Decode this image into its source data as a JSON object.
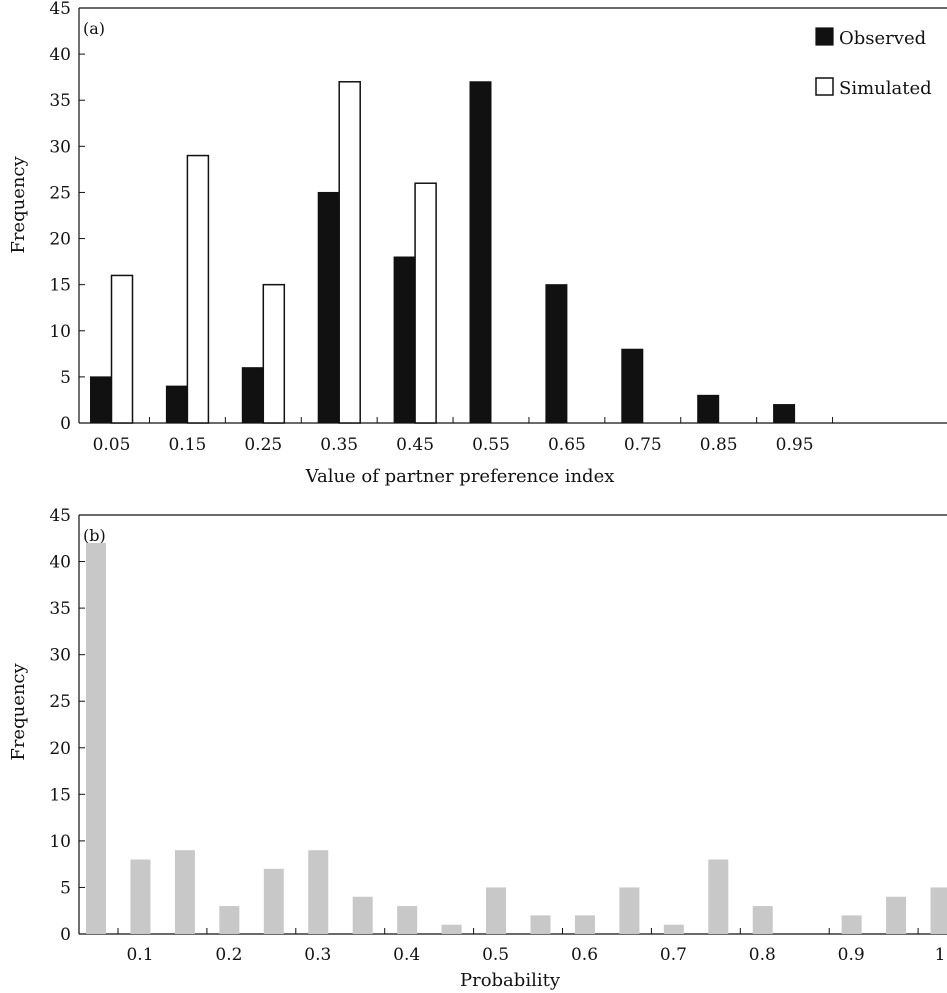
{
  "chart_data": [
    {
      "type": "bar",
      "panel_label": "(a)",
      "xlabel": "Value of partner preference index",
      "ylabel": "Frequency",
      "ylim": [
        0,
        45
      ],
      "yticks": [
        0,
        5,
        10,
        15,
        20,
        25,
        30,
        35,
        40,
        45
      ],
      "categories": [
        "0.05",
        "0.15",
        "0.25",
        "0.35",
        "0.45",
        "0.55",
        "0.65",
        "0.75",
        "0.85",
        "0.95"
      ],
      "legend_position": "top-right",
      "series": [
        {
          "name": "Observed",
          "color": "#111111",
          "values": [
            5,
            4,
            6,
            25,
            18,
            37,
            15,
            8,
            3,
            2
          ]
        },
        {
          "name": "Simulated",
          "color": "#ffffff",
          "values": [
            16,
            29,
            15,
            37,
            26,
            0,
            0,
            0,
            0,
            0
          ]
        }
      ]
    },
    {
      "type": "bar",
      "panel_label": "(b)",
      "xlabel": "Probability",
      "ylabel": "Frequency",
      "ylim": [
        0,
        45
      ],
      "yticks": [
        0,
        5,
        10,
        15,
        20,
        25,
        30,
        35,
        40,
        45
      ],
      "xticks": [
        "0.1",
        "0.2",
        "0.3",
        "0.4",
        "0.5",
        "0.6",
        "0.7",
        "0.8",
        "0.9",
        "1"
      ],
      "bar_color": "#c8c8c8",
      "x": [
        0.05,
        0.1,
        0.15,
        0.2,
        0.25,
        0.3,
        0.35,
        0.4,
        0.45,
        0.5,
        0.55,
        0.6,
        0.65,
        0.7,
        0.75,
        0.8,
        0.85,
        0.9,
        0.95,
        1.0
      ],
      "values": [
        42,
        8,
        9,
        3,
        7,
        9,
        4,
        3,
        1,
        5,
        2,
        2,
        5,
        1,
        8,
        3,
        0,
        2,
        4,
        5
      ]
    }
  ]
}
